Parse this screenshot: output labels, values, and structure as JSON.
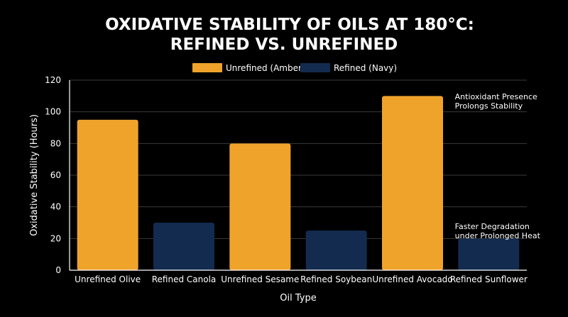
{
  "chart_data": {
    "type": "bar",
    "title_lines": [
      "OXIDATIVE STABILITY OF OILS AT 180°C:",
      "REFINED VS. UNREFINED"
    ],
    "xlabel": "Oil Type",
    "ylabel": "Oxidative Stability (Hours)",
    "ylim": [
      0,
      120
    ],
    "yticks": [
      0,
      20,
      40,
      60,
      80,
      100,
      120
    ],
    "grid": true,
    "legend_placement": "top-center",
    "legend": [
      {
        "name": "Unrefined (Amber)",
        "color": "#F0A32B"
      },
      {
        "name": "Refined (Navy)",
        "color": "#132B4F"
      }
    ],
    "categories": [
      "Unrefined Olive",
      "Refined Canola",
      "Unrefined Sesame",
      "Refined Soybean",
      "Unrefined Avocado",
      "Refined Sunflower"
    ],
    "values": [
      95,
      30,
      80,
      25,
      110,
      20
    ],
    "bar_groups": [
      "unrefined",
      "refined",
      "unrefined",
      "refined",
      "unrefined",
      "refined"
    ],
    "colors": {
      "unrefined": "#F0A32B",
      "refined": "#132B4F"
    },
    "annotations": [
      {
        "lines": [
          "Antioxidant Presence",
          "Prolongs Stability"
        ],
        "category": "Refined Sunflower",
        "y": 108
      },
      {
        "lines": [
          "Faster Degradation",
          "under Prolonged Heat"
        ],
        "category": "Refined Sunflower",
        "y": 26
      }
    ]
  }
}
